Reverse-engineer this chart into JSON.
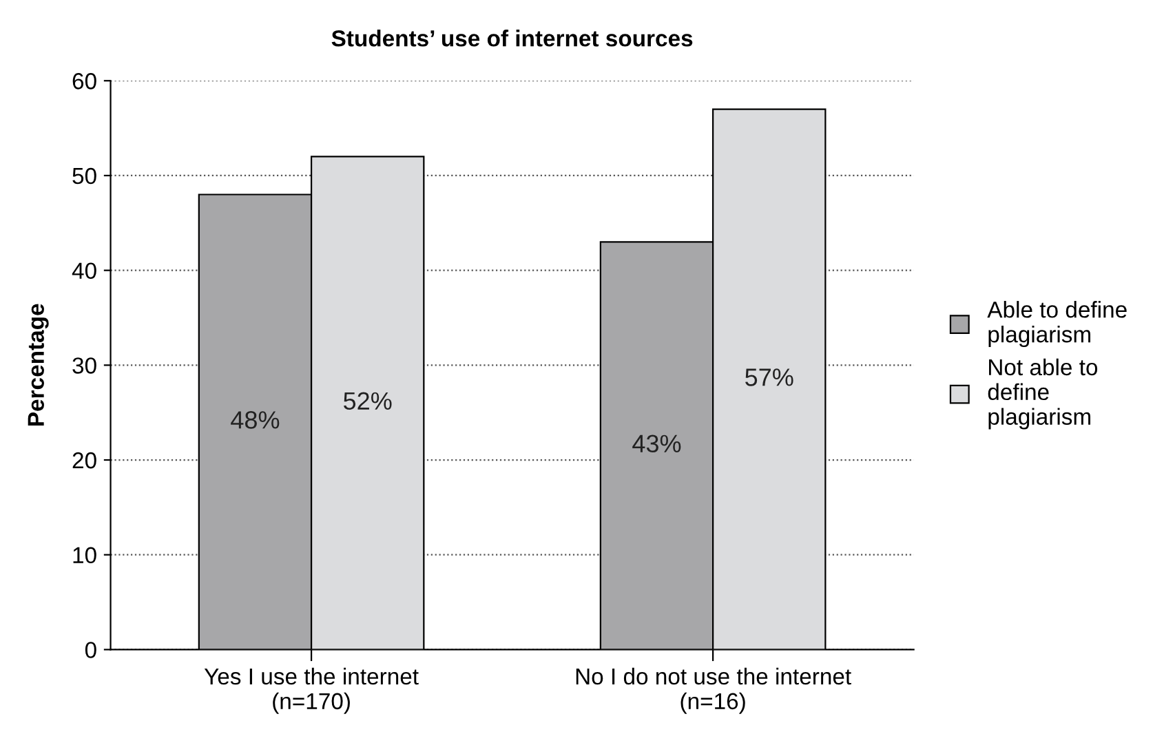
{
  "chart_data": {
    "type": "bar",
    "title": "Students’ use of internet sources",
    "ylabel": "Percentage",
    "categories": [
      "Yes I use the internet\n(n=170)",
      "No I do not use the internet\n(n=16)"
    ],
    "series": [
      {
        "name": "Able to define\nplagiarism",
        "color": "#a7a7a9",
        "values": [
          48,
          43
        ],
        "value_labels": [
          "48%",
          "43%"
        ]
      },
      {
        "name": "Not able to\ndefine\nplagiarism",
        "color": "#dbdcde",
        "values": [
          52,
          57
        ],
        "value_labels": [
          "52%",
          "57%"
        ]
      }
    ],
    "ylim": [
      0,
      60
    ],
    "yticks": [
      0,
      10,
      20,
      30,
      40,
      50,
      60
    ],
    "grid": "y",
    "legend": "right"
  }
}
